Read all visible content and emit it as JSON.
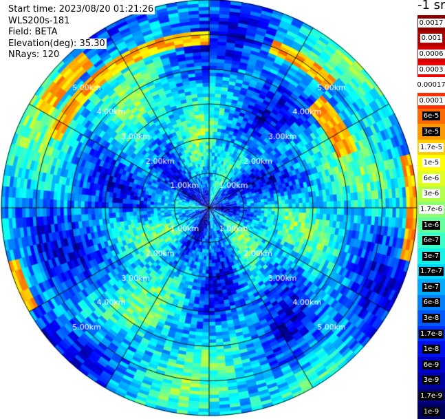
{
  "info": {
    "start_time": "Start time: 2023/08/20 01:21:26",
    "instrument": "WLS200s-181",
    "field": "Field: BETA",
    "elevation": "Elevation(deg): 35.30",
    "nrays": "NRays: 120"
  },
  "colorbar": {
    "title": "-1 sr",
    "levels": [
      {
        "label": "0.0017",
        "color": "#8b0000",
        "style": "light"
      },
      {
        "label": "0.001",
        "color": "#b00000",
        "style": "light"
      },
      {
        "label": "0.0006",
        "color": "#d40000",
        "style": "light"
      },
      {
        "label": "0.0003",
        "color": "#f00000",
        "style": "light"
      },
      {
        "label": "0.00017",
        "color": "#ffffff",
        "style": "light"
      },
      {
        "label": "0.0001",
        "color": "#ff3000",
        "style": "light"
      },
      {
        "label": "6e-5",
        "color": "#ff6a00",
        "style": "dark"
      },
      {
        "label": "3e-5",
        "color": "#ff9a00",
        "style": "dark"
      },
      {
        "label": "1.7e-5",
        "color": "#ffcc00",
        "style": "light"
      },
      {
        "label": "1e-5",
        "color": "#ffff00",
        "style": "light"
      },
      {
        "label": "6e-6",
        "color": "#e0ff20",
        "style": "light"
      },
      {
        "label": "3e-6",
        "color": "#b4ff4a",
        "style": "light"
      },
      {
        "label": "1.7e-6",
        "color": "#8cff73",
        "style": "light"
      },
      {
        "label": "1e-6",
        "color": "#62ff9c",
        "style": "dark"
      },
      {
        "label": "6e-7",
        "color": "#3affc6",
        "style": "dark"
      },
      {
        "label": "3e-7",
        "color": "#14f2ea",
        "style": "dark"
      },
      {
        "label": "1.7e-7",
        "color": "#00d4ff",
        "style": "dark"
      },
      {
        "label": "1e-7",
        "color": "#00aaff",
        "style": "dark"
      },
      {
        "label": "6e-8",
        "color": "#0080ff",
        "style": "dark"
      },
      {
        "label": "3e-8",
        "color": "#0058ff",
        "style": "dark"
      },
      {
        "label": "1.7e-8",
        "color": "#0030ff",
        "style": "dark"
      },
      {
        "label": "1e-8",
        "color": "#0010f0",
        "style": "dark"
      },
      {
        "label": "6e-9",
        "color": "#0000cd",
        "style": "dark"
      },
      {
        "label": "3e-9",
        "color": "#0000a6",
        "style": "dark"
      },
      {
        "label": "1.7e-9",
        "color": "#000080",
        "style": "dark"
      },
      {
        "label": "1e-9",
        "color": "#000060",
        "style": "dark"
      }
    ]
  },
  "chart_data": {
    "type": "heatmap",
    "projection": "polar",
    "field": "BETA",
    "elevation_deg": 35.3,
    "n_rays": 120,
    "range_km_max": 6.0,
    "range_rings_km": [
      1,
      2,
      3,
      4,
      5,
      6
    ],
    "ring_labels": [
      "1.00km",
      "2.00km",
      "3.00km",
      "4.00km",
      "5.00km"
    ],
    "spokes_deg": [
      0,
      30,
      60,
      90,
      120,
      150,
      180,
      210,
      240,
      270,
      300,
      330
    ],
    "features": [
      {
        "azimuth_from_deg": 295,
        "azimuth_to_deg": 360,
        "range_from_km": 4.7,
        "range_to_km": 5.1,
        "value": "3e-5 to 1e-5"
      },
      {
        "azimuth_from_deg": 20,
        "azimuth_to_deg": 45,
        "range_from_km": 4.8,
        "range_to_km": 5.2,
        "value": "6e-5 to 1e-5"
      },
      {
        "azimuth_from_deg": 45,
        "azimuth_to_deg": 70,
        "range_from_km": 4.0,
        "range_to_km": 4.6,
        "value": "3e-5 to 1e-5"
      },
      {
        "azimuth_from_deg": 75,
        "azimuth_to_deg": 105,
        "range_from_km": 5.7,
        "range_to_km": 5.95,
        "value": "1e-5 to 6e-6"
      },
      {
        "azimuth_from_deg": 240,
        "azimuth_to_deg": 255,
        "range_from_km": 5.7,
        "range_to_km": 5.95,
        "value": "1e-5"
      },
      {
        "azimuth_from_deg": 300,
        "azimuth_to_deg": 320,
        "range_from_km": 5.3,
        "range_to_km": 5.8,
        "value": "1.7e-5"
      }
    ]
  }
}
